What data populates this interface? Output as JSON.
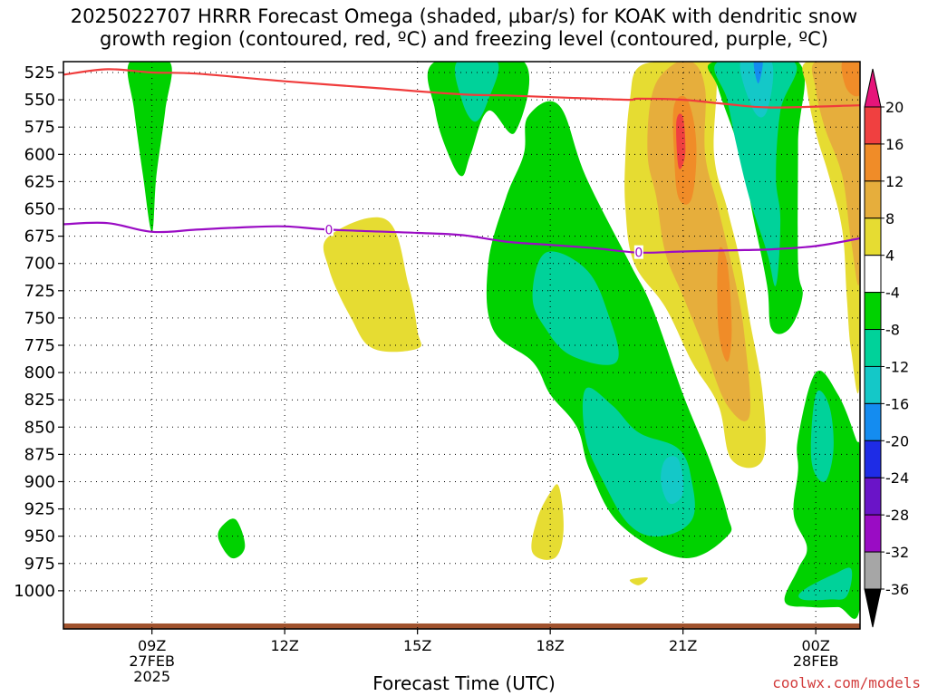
{
  "title_line1": "2025022707 HRRR Forecast Omega (shaded, µbar/s) for KOAK with dendritic snow",
  "title_line2": "growth region (contoured, red, ºC) and freezing level (contoured, purple, ºC)",
  "x_axis_title": "Forecast Time (UTC)",
  "credit": "coolwx.com/models",
  "chart_data": {
    "type": "heatmap",
    "y_axis": {
      "label": "",
      "ticks": [
        525,
        550,
        575,
        600,
        625,
        650,
        675,
        700,
        725,
        750,
        775,
        800,
        825,
        850,
        875,
        900,
        925,
        950,
        975,
        1000
      ],
      "reversed": true,
      "range": [
        515,
        1035
      ]
    },
    "x_axis": {
      "range": [
        7,
        25
      ],
      "ticks": [
        {
          "hour": 9,
          "lines": [
            "09Z",
            "27FEB",
            "2025"
          ]
        },
        {
          "hour": 12,
          "lines": [
            "12Z"
          ]
        },
        {
          "hour": 15,
          "lines": [
            "15Z"
          ]
        },
        {
          "hour": 18,
          "lines": [
            "18Z"
          ]
        },
        {
          "hour": 21,
          "lines": [
            "21Z"
          ]
        },
        {
          "hour": 24,
          "lines": [
            "00Z",
            "28FEB"
          ]
        }
      ]
    },
    "grid": true,
    "colorbar": {
      "levels": [
        -36,
        -32,
        -28,
        -24,
        -20,
        -16,
        -12,
        -8,
        -4,
        4,
        8,
        12,
        16,
        20
      ],
      "labels": [
        "-36",
        "-32",
        "-28",
        "-24",
        "-20",
        "-16",
        "-12",
        "-8",
        "-4",
        "4",
        "8",
        "12",
        "16",
        "20"
      ],
      "colors": [
        "#a6a6a6",
        "#9a0cc4",
        "#6a14c8",
        "#1e2ce6",
        "#148cf0",
        "#14c8c8",
        "#00d29a",
        "#00d200",
        "#ffffff",
        "#e6dc32",
        "#e6ae3c",
        "#f08c28",
        "#f04040",
        "#e6147a"
      ],
      "under_color": "#000000",
      "over_color": "#e6147a"
    },
    "contour_dendritic_snow": {
      "color": "#f03c3c",
      "points": [
        [
          7,
          527
        ],
        [
          8,
          522
        ],
        [
          9,
          525
        ],
        [
          10,
          526
        ],
        [
          12,
          533
        ],
        [
          14,
          539
        ],
        [
          16,
          545
        ],
        [
          17,
          546
        ],
        [
          19,
          549
        ],
        [
          19.8,
          550
        ],
        [
          20,
          549
        ],
        [
          21,
          550
        ],
        [
          22,
          554
        ],
        [
          23,
          557
        ],
        [
          25,
          555
        ]
      ]
    },
    "contour_freezing_level": {
      "color": "#9a0cc4",
      "label": "0",
      "label_positions": [
        13,
        20
      ],
      "points": [
        [
          7,
          664
        ],
        [
          8,
          663
        ],
        [
          9,
          671
        ],
        [
          10,
          669
        ],
        [
          11,
          667
        ],
        [
          12,
          666
        ],
        [
          13,
          669
        ],
        [
          15,
          672
        ],
        [
          16,
          674
        ],
        [
          17,
          680
        ],
        [
          18,
          683
        ],
        [
          19,
          686
        ],
        [
          20,
          690
        ],
        [
          21,
          689
        ],
        [
          22,
          688
        ],
        [
          23,
          687
        ],
        [
          24,
          684
        ],
        [
          25,
          677
        ]
      ]
    },
    "omega_regions": [
      {
        "value": -6,
        "points": [
          [
            8.5,
            515
          ],
          [
            9.4,
            515
          ],
          [
            9.3,
            560
          ],
          [
            9.1,
            620
          ],
          [
            9.0,
            671
          ],
          [
            8.8,
            620
          ],
          [
            8.6,
            560
          ]
        ]
      },
      {
        "value": 6,
        "points": [
          [
            13,
            675
          ],
          [
            14.3,
            660
          ],
          [
            14.8,
            720
          ],
          [
            15,
            762
          ],
          [
            15,
            778
          ],
          [
            14.0,
            778
          ],
          [
            13.5,
            750
          ],
          [
            13,
            705
          ]
        ]
      },
      {
        "value": -6,
        "points": [
          [
            10.6,
            940
          ],
          [
            10.9,
            935
          ],
          [
            11.1,
            960
          ],
          [
            10.8,
            970
          ],
          [
            10.5,
            952
          ]
        ]
      },
      {
        "value": -6,
        "points": [
          [
            15.4,
            515
          ],
          [
            17.4,
            515
          ],
          [
            17.2,
            580
          ],
          [
            16.6,
            560
          ],
          [
            16.2,
            600
          ],
          [
            16.0,
            620
          ],
          [
            15.7,
            600
          ],
          [
            15.4,
            560
          ]
        ]
      },
      {
        "value": -10,
        "points": [
          [
            15.9,
            515
          ],
          [
            16.8,
            515
          ],
          [
            16.6,
            550
          ],
          [
            16.3,
            570
          ],
          [
            16.0,
            550
          ]
        ]
      },
      {
        "value": -6,
        "points": [
          [
            17.5,
            565
          ],
          [
            18.2,
            555
          ],
          [
            18.8,
            620
          ],
          [
            19.8,
            700
          ],
          [
            20.3,
            740
          ],
          [
            21.0,
            820
          ],
          [
            21.6,
            880
          ],
          [
            22.0,
            930
          ],
          [
            22.0,
            950
          ],
          [
            21.0,
            970
          ],
          [
            19.6,
            940
          ],
          [
            18.9,
            890
          ],
          [
            18.6,
            850
          ],
          [
            18.0,
            820
          ],
          [
            17.6,
            790
          ],
          [
            16.7,
            760
          ],
          [
            16.6,
            700
          ],
          [
            17.0,
            640
          ],
          [
            17.4,
            600
          ]
        ]
      },
      {
        "value": -10,
        "points": [
          [
            17.9,
            690
          ],
          [
            18.8,
            705
          ],
          [
            19.3,
            745
          ],
          [
            19.5,
            790
          ],
          [
            18.5,
            785
          ],
          [
            17.9,
            760
          ],
          [
            17.6,
            730
          ]
        ]
      },
      {
        "value": -10,
        "points": [
          [
            18.8,
            815
          ],
          [
            19.4,
            830
          ],
          [
            20.0,
            855
          ],
          [
            20.9,
            870
          ],
          [
            21.2,
            900
          ],
          [
            21.2,
            935
          ],
          [
            20.5,
            950
          ],
          [
            19.8,
            940
          ],
          [
            19.2,
            900
          ],
          [
            18.8,
            860
          ]
        ]
      },
      {
        "value": -14,
        "points": [
          [
            20.6,
            880
          ],
          [
            20.9,
            880
          ],
          [
            21.0,
            910
          ],
          [
            20.7,
            920
          ],
          [
            20.5,
            900
          ]
        ]
      },
      {
        "value": 6,
        "points": [
          [
            18.0,
            910
          ],
          [
            18.2,
            905
          ],
          [
            18.3,
            945
          ],
          [
            18.1,
            970
          ],
          [
            17.6,
            965
          ],
          [
            17.7,
            935
          ]
        ]
      },
      {
        "value": 6,
        "points": [
          [
            19.8,
            990
          ],
          [
            20.2,
            988
          ],
          [
            20.0,
            995
          ]
        ]
      },
      {
        "value": 6,
        "points": [
          [
            20.0,
            520
          ],
          [
            20.8,
            515
          ],
          [
            21.7,
            515
          ],
          [
            21.7,
            600
          ],
          [
            22.0,
            650
          ],
          [
            22.3,
            700
          ],
          [
            22.5,
            750
          ],
          [
            22.8,
            820
          ],
          [
            22.8,
            880
          ],
          [
            22.1,
            880
          ],
          [
            21.8,
            830
          ],
          [
            21.2,
            790
          ],
          [
            20.6,
            740
          ],
          [
            19.9,
            700
          ],
          [
            19.7,
            650
          ],
          [
            19.7,
            600
          ],
          [
            19.8,
            550
          ]
        ]
      },
      {
        "value": 10,
        "points": [
          [
            20.3,
            545
          ],
          [
            20.7,
            520
          ],
          [
            21.2,
            515
          ],
          [
            21.5,
            540
          ],
          [
            21.5,
            600
          ],
          [
            21.8,
            650
          ],
          [
            22.2,
            720
          ],
          [
            22.4,
            770
          ],
          [
            22.5,
            840
          ],
          [
            22.0,
            830
          ],
          [
            21.5,
            780
          ],
          [
            21.0,
            730
          ],
          [
            20.6,
            690
          ],
          [
            20.4,
            640
          ],
          [
            20.2,
            600
          ]
        ]
      },
      {
        "value": 14,
        "points": [
          [
            20.8,
            555
          ],
          [
            21.1,
            550
          ],
          [
            21.3,
            590
          ],
          [
            21.2,
            640
          ],
          [
            20.9,
            640
          ],
          [
            20.8,
            600
          ]
        ]
      },
      {
        "value": 18,
        "points": [
          [
            20.85,
            570
          ],
          [
            21.0,
            566
          ],
          [
            21.05,
            600
          ],
          [
            20.9,
            612
          ]
        ]
      },
      {
        "value": 14,
        "points": [
          [
            21.8,
            690
          ],
          [
            22.0,
            700
          ],
          [
            22.1,
            760
          ],
          [
            22.0,
            790
          ],
          [
            21.8,
            760
          ]
        ]
      },
      {
        "value": -6,
        "points": [
          [
            21.7,
            515
          ],
          [
            23.6,
            515
          ],
          [
            23.6,
            590
          ],
          [
            23.6,
            700
          ],
          [
            23.7,
            730
          ],
          [
            23.4,
            760
          ],
          [
            23.0,
            760
          ],
          [
            22.9,
            720
          ],
          [
            22.6,
            660
          ],
          [
            22.3,
            600
          ],
          [
            21.8,
            540
          ]
        ]
      },
      {
        "value": -10,
        "points": [
          [
            21.8,
            515
          ],
          [
            23.5,
            515
          ],
          [
            23.2,
            560
          ],
          [
            23.1,
            620
          ],
          [
            23.2,
            660
          ],
          [
            23.1,
            720
          ],
          [
            22.9,
            690
          ],
          [
            22.5,
            640
          ],
          [
            22.2,
            590
          ],
          [
            22.0,
            550
          ]
        ]
      },
      {
        "value": -14,
        "points": [
          [
            22.3,
            515
          ],
          [
            23.0,
            515
          ],
          [
            22.9,
            560
          ],
          [
            22.6,
            560
          ]
        ]
      },
      {
        "value": -18,
        "points": [
          [
            22.6,
            515
          ],
          [
            22.8,
            515
          ],
          [
            22.7,
            535
          ]
        ]
      },
      {
        "value": 6,
        "points": [
          [
            23.8,
            515
          ],
          [
            25,
            515
          ],
          [
            25,
            800
          ],
          [
            24.8,
            780
          ],
          [
            24.7,
            730
          ],
          [
            24.6,
            670
          ],
          [
            24.3,
            620
          ],
          [
            24.0,
            580
          ],
          [
            23.8,
            540
          ]
        ]
      },
      {
        "value": 10,
        "points": [
          [
            24.0,
            515
          ],
          [
            25,
            515
          ],
          [
            25,
            710
          ],
          [
            24.8,
            680
          ],
          [
            24.6,
            620
          ],
          [
            24.2,
            575
          ],
          [
            24.0,
            540
          ]
        ]
      },
      {
        "value": 14,
        "points": [
          [
            24.6,
            515
          ],
          [
            25,
            515
          ],
          [
            25,
            545
          ],
          [
            24.7,
            540
          ]
        ]
      },
      {
        "value": -6,
        "points": [
          [
            23.6,
            860
          ],
          [
            24.0,
            800
          ],
          [
            24.5,
            820
          ],
          [
            24.9,
            860
          ],
          [
            25,
            880
          ],
          [
            25,
            1015
          ],
          [
            24.5,
            1015
          ],
          [
            23.9,
            1015
          ],
          [
            23.3,
            1010
          ],
          [
            23.6,
            980
          ],
          [
            23.8,
            960
          ],
          [
            23.5,
            930
          ],
          [
            23.6,
            890
          ]
        ]
      },
      {
        "value": -10,
        "points": [
          [
            24.0,
            820
          ],
          [
            24.3,
            830
          ],
          [
            24.4,
            870
          ],
          [
            24.2,
            900
          ],
          [
            23.9,
            880
          ]
        ]
      },
      {
        "value": -10,
        "points": [
          [
            23.7,
            1000
          ],
          [
            24.4,
            985
          ],
          [
            24.8,
            980
          ],
          [
            24.7,
            1005
          ],
          [
            24.3,
            1008
          ],
          [
            23.7,
            1008
          ]
        ]
      }
    ],
    "terrain": [
      [
        7,
        1030
      ],
      [
        23,
        1030
      ],
      [
        25,
        1030
      ]
    ]
  }
}
